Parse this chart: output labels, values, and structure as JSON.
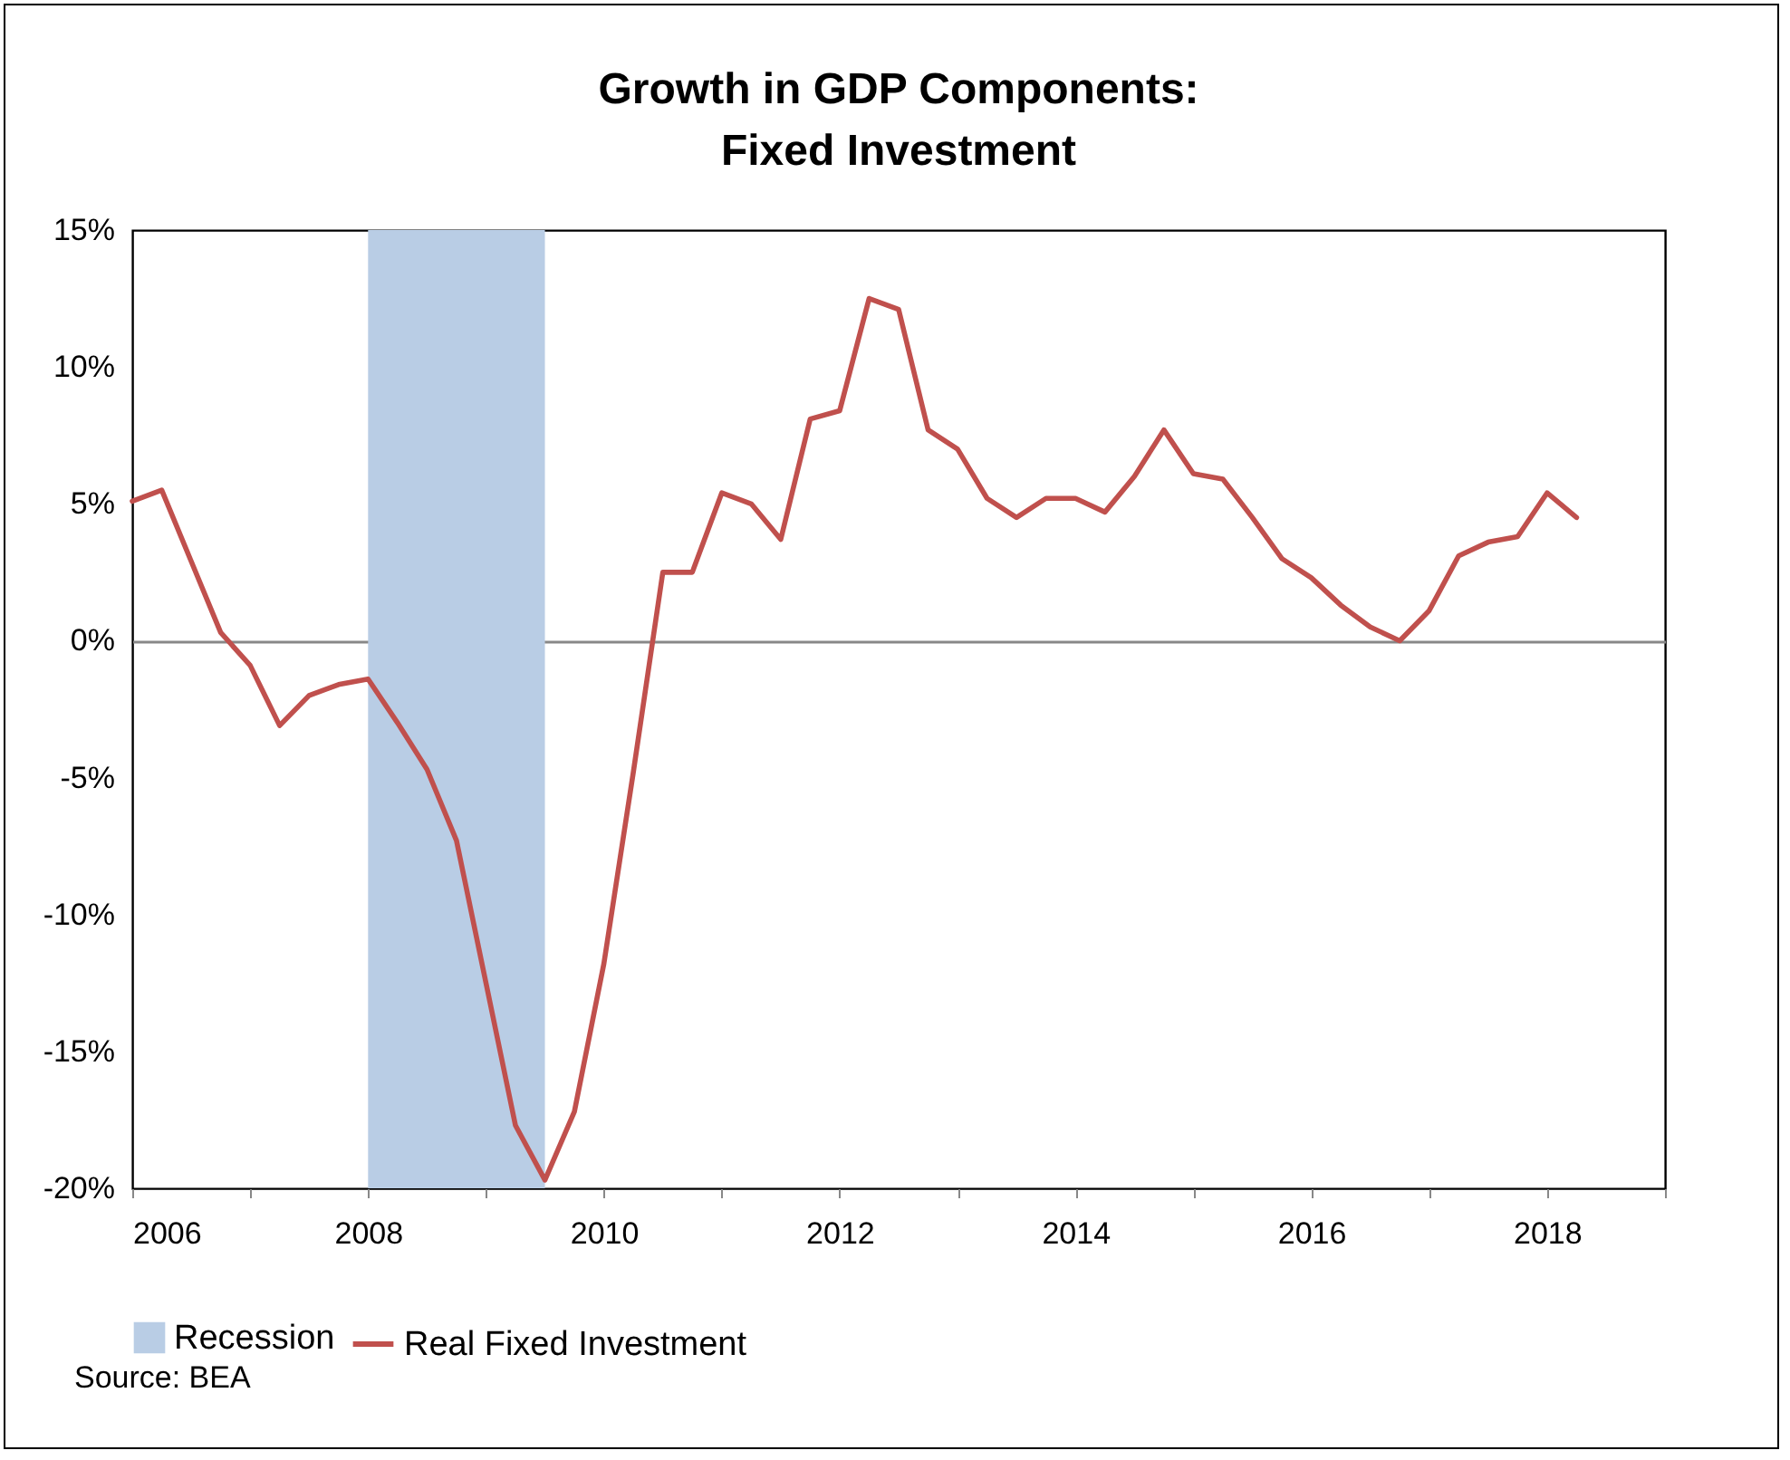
{
  "chart_data": {
    "type": "line",
    "title": "Growth in GDP Components:\nFixed Investment",
    "x": [
      2006,
      2006.25,
      2006.5,
      2006.75,
      2007,
      2007.25,
      2007.5,
      2007.75,
      2008,
      2008.25,
      2008.5,
      2008.75,
      2009,
      2009.25,
      2009.5,
      2009.75,
      2010,
      2010.25,
      2010.5,
      2010.75,
      2011,
      2011.25,
      2011.5,
      2011.75,
      2012,
      2012.25,
      2012.5,
      2012.75,
      2013,
      2013.25,
      2013.5,
      2013.75,
      2014,
      2014.25,
      2014.5,
      2014.75,
      2015,
      2015.25,
      2015.5,
      2015.75,
      2016,
      2016.25,
      2016.5,
      2016.75,
      2017,
      2017.25,
      2017.5,
      2017.75,
      2018,
      2018.25
    ],
    "series": [
      {
        "name": "Real Fixed Investment",
        "color": "#c0504d",
        "values": [
          5.1,
          5.5,
          2.9,
          0.3,
          -0.9,
          -3.1,
          -2.0,
          -1.6,
          -1.4,
          -3.0,
          -4.7,
          -7.3,
          -12.5,
          -17.7,
          -19.7,
          -17.2,
          -11.8,
          -4.8,
          2.5,
          2.5,
          5.4,
          5.0,
          3.7,
          8.1,
          8.4,
          12.5,
          12.1,
          7.7,
          7.0,
          5.2,
          4.5,
          5.2,
          5.2,
          4.7,
          6.0,
          7.7,
          6.1,
          5.9,
          4.5,
          3.0,
          2.3,
          1.3,
          0.5,
          0.0,
          1.1,
          3.1,
          3.6,
          3.8,
          5.4,
          4.5
        ]
      }
    ],
    "xlim": [
      2006,
      2019
    ],
    "xticks": [
      2006,
      {
        "value": 2007,
        "label": null
      },
      2008,
      {
        "value": 2009,
        "label": null
      },
      2010,
      {
        "value": 2011,
        "label": null
      },
      2012,
      {
        "value": 2013,
        "label": null
      },
      2014,
      {
        "value": 2015,
        "label": null
      },
      2016,
      {
        "value": 2017,
        "label": null
      },
      2018,
      {
        "value": 2019,
        "label": null
      }
    ],
    "ylim": [
      -20,
      15
    ],
    "yticks": [
      {
        "value": -20,
        "label": "-20%"
      },
      {
        "value": -15,
        "label": "-15%"
      },
      {
        "value": -10,
        "label": "-10%"
      },
      {
        "value": -5,
        "label": "-5%"
      },
      {
        "value": 0,
        "label": "0%"
      },
      {
        "value": 5,
        "label": "5%"
      },
      {
        "value": 10,
        "label": "10%"
      },
      {
        "value": 15,
        "label": "15%"
      }
    ],
    "bands": [
      {
        "axis": "x",
        "from": 2008,
        "to": 2009.5,
        "label": "Recession",
        "color": "#b9cde5"
      }
    ],
    "legend": "bottom",
    "marker": "none",
    "line_style": "solid",
    "annotations": [
      "Source: BEA"
    ]
  }
}
